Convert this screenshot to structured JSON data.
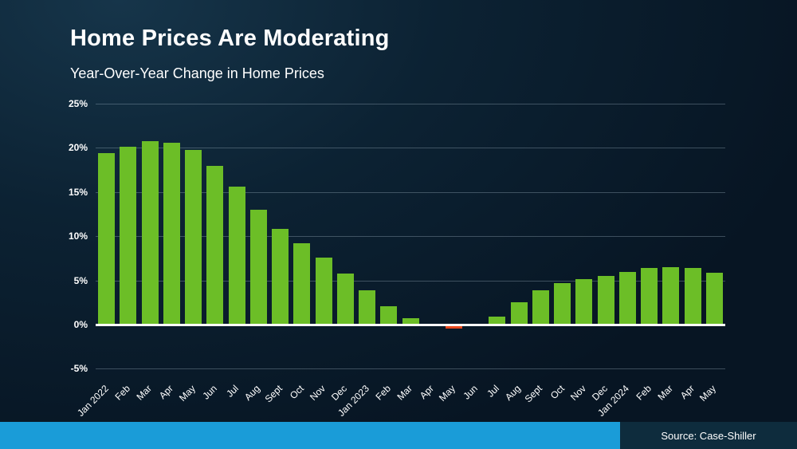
{
  "header": {
    "title": "Home Prices Are Moderating",
    "subtitle": "Year-Over-Year Change in Home Prices"
  },
  "footer": {
    "source_label": "Source: Case-Shiller"
  },
  "colors": {
    "bar_positive": "#6cbe27",
    "bar_negative": "#e8491d",
    "background": "#0c2233",
    "footer_strip": "#1a9cd8",
    "footer_source_box": "#0e2c3d"
  },
  "chart_data": {
    "type": "bar",
    "title": "Home Prices Are Moderating",
    "subtitle": "Year-Over-Year Change in Home Prices",
    "xlabel": "",
    "ylabel": "Year-Over-Year Change in Home Prices (%)",
    "ylim": [
      -5,
      25
    ],
    "grid": true,
    "legend": "none",
    "y_ticks": [
      25,
      20,
      15,
      10,
      5,
      0,
      -5
    ],
    "y_tick_labels": [
      "25%",
      "20%",
      "15%",
      "10%",
      "5%",
      "0%",
      "-5%"
    ],
    "categories": [
      "Jan 2022",
      "Feb",
      "Mar",
      "Apr",
      "May",
      "Jun",
      "Jul",
      "Aug",
      "Sept",
      "Oct",
      "Nov",
      "Dec",
      "Jan 2023",
      "Feb",
      "Mar",
      "Apr",
      "May",
      "Jun",
      "Jul",
      "Aug",
      "Sept",
      "Oct",
      "Nov",
      "Dec",
      "Jan 2024",
      "Feb",
      "Mar",
      "Apr",
      "May"
    ],
    "values": [
      19.4,
      20.1,
      20.8,
      20.6,
      19.8,
      18.0,
      15.6,
      13.0,
      10.8,
      9.2,
      7.6,
      5.8,
      3.9,
      2.1,
      0.7,
      -0.1,
      -0.4,
      0.0,
      0.9,
      2.5,
      3.9,
      4.7,
      5.1,
      5.5,
      6.0,
      6.4,
      6.5,
      6.4,
      5.9
    ],
    "source": "Source: Case-Shiller"
  }
}
